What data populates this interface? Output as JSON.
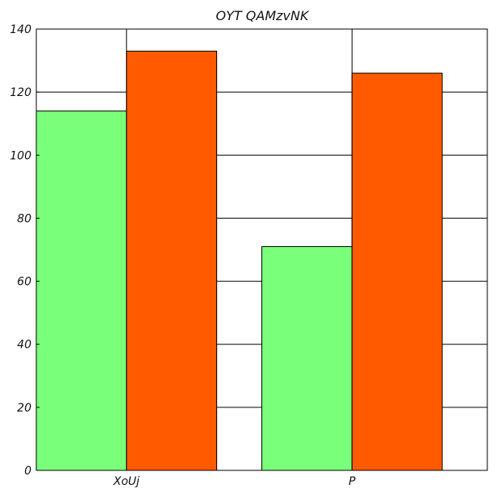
{
  "chart_data": {
    "type": "bar",
    "title": "OYT QAMzvNK",
    "xlabel": "",
    "ylabel": "",
    "categories": [
      "XoUj",
      "P"
    ],
    "series": [
      {
        "values": [
          114,
          71
        ],
        "color": "#7aff7a"
      },
      {
        "values": [
          133,
          126
        ],
        "color": "#ff5a00"
      }
    ],
    "ylim": [
      0,
      140
    ],
    "yticks": [
      0,
      20,
      40,
      60,
      80,
      100,
      120,
      140
    ],
    "grid": true
  }
}
